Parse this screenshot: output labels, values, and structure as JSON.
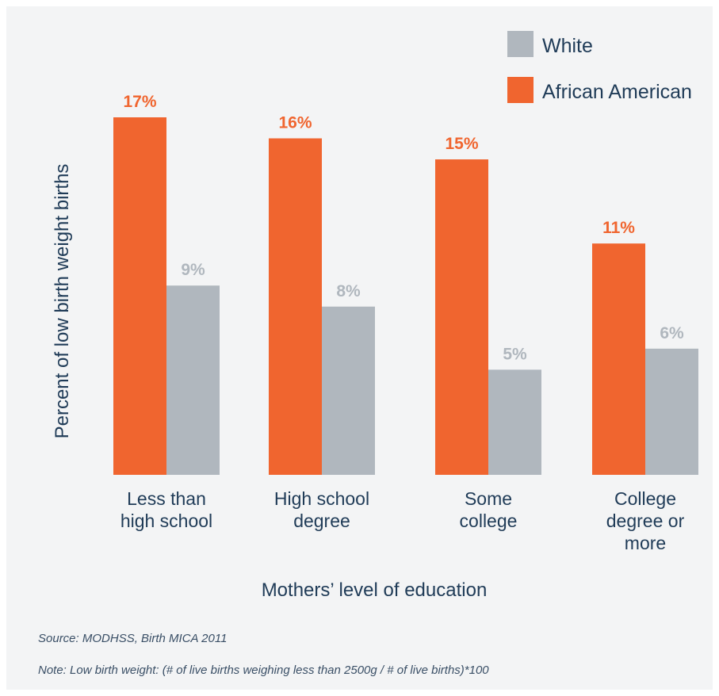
{
  "chart_data": {
    "type": "bar",
    "categories": [
      "Less than high school",
      "High school degree",
      "Some college",
      "College degree or more"
    ],
    "category_lines": [
      [
        "Less than",
        "high school"
      ],
      [
        "High school",
        "degree"
      ],
      [
        "Some",
        "college"
      ],
      [
        "College",
        "degree or",
        "more"
      ]
    ],
    "series": [
      {
        "name": "African American",
        "values": [
          17,
          16,
          15,
          11
        ],
        "labels": [
          "17%",
          "16%",
          "15%",
          "11%"
        ],
        "color": "#f0652f"
      },
      {
        "name": "White",
        "values": [
          9,
          8,
          5,
          6
        ],
        "labels": [
          "9%",
          "8%",
          "5%",
          "6%"
        ],
        "color": "#b0b7be"
      }
    ],
    "legend_order": [
      "White",
      "African American"
    ],
    "legend_position": "top-right",
    "xlabel": "Mothers’ level of education",
    "ylabel": "Percent of low birth weight births",
    "ylim": [
      0,
      17
    ],
    "grid": false
  },
  "colors": {
    "african_american": "#f0652f",
    "white": "#b0b7be",
    "text": "#1f3b57",
    "background": "#f3f4f5"
  },
  "footer": {
    "source": "Source: MODHSS, Birth MICA 2011",
    "note": "Note: Low birth weight: (# of live births weighing less than 2500g / # of live births)*100"
  }
}
